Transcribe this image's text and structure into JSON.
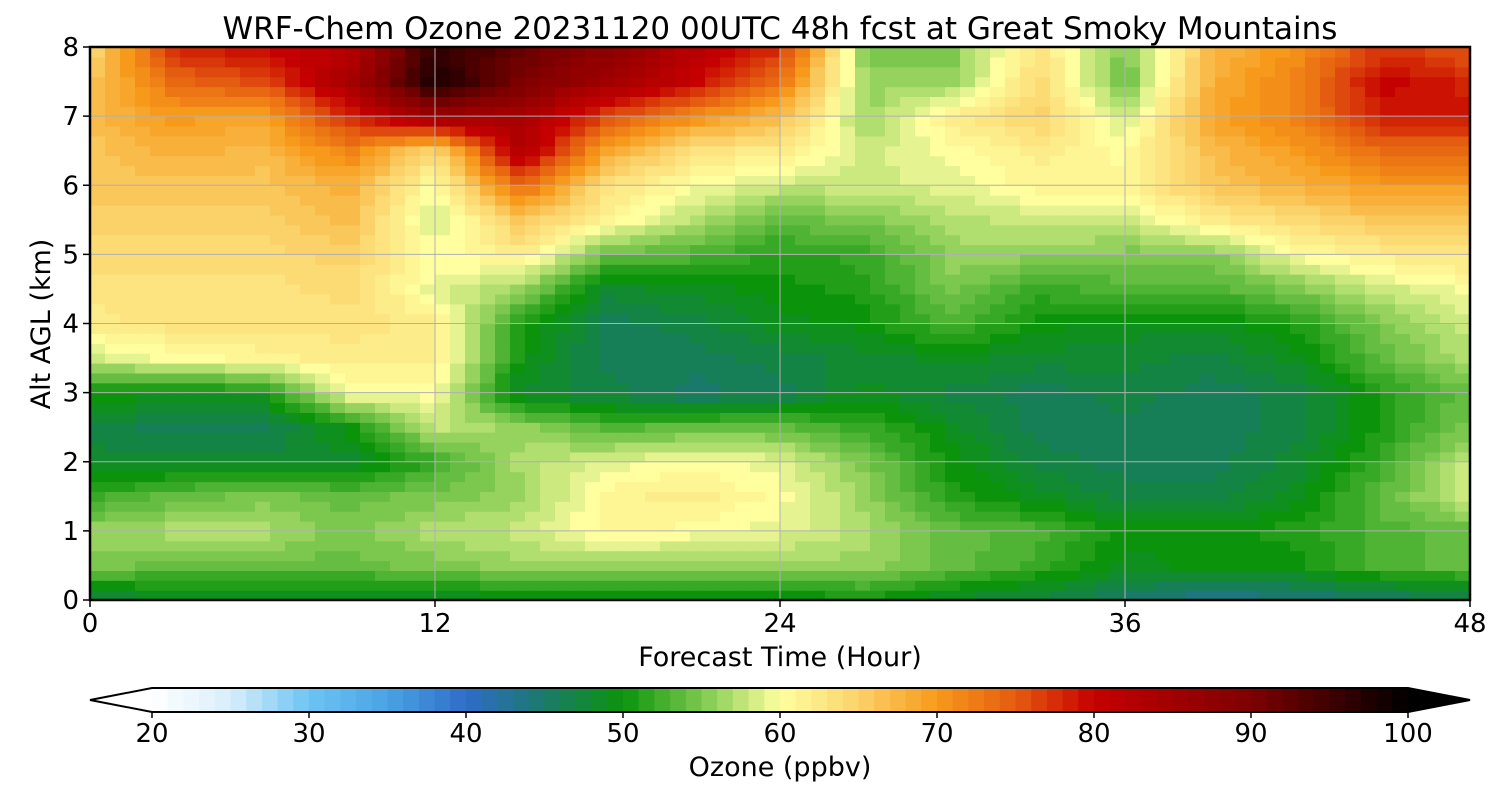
{
  "chart_data": {
    "type": "heatmap",
    "title": "WRF-Chem Ozone  20231120 00UTC 48h fcst at Great Smoky Mountains",
    "xlabel": "Forecast Time (Hour)",
    "ylabel": "Alt AGL (km)",
    "xlim": [
      0,
      48
    ],
    "ylim": [
      0,
      8
    ],
    "xticks": [
      0,
      12,
      24,
      36,
      48
    ],
    "yticks": [
      0,
      1,
      2,
      3,
      4,
      5,
      6,
      7,
      8
    ],
    "grid": true,
    "x": [
      0,
      3,
      6,
      9,
      12,
      15,
      18,
      21,
      24,
      27,
      30,
      33,
      36,
      39,
      42,
      45,
      48
    ],
    "y": [
      0,
      0.5,
      1,
      1.5,
      2,
      2.5,
      3,
      3.5,
      4,
      4.5,
      5,
      5.5,
      6,
      6.5,
      7,
      7.5,
      8
    ],
    "z": [
      [
        47,
        48,
        48,
        48,
        48,
        49,
        49,
        49,
        49,
        50,
        48,
        47,
        45,
        43,
        44,
        45,
        46
      ],
      [
        55,
        54,
        54,
        54,
        55,
        56,
        56,
        56,
        56,
        56,
        54,
        52,
        49,
        50,
        50,
        53,
        54
      ],
      [
        56,
        57,
        57,
        55,
        57,
        58,
        61,
        60,
        59,
        57,
        54,
        53,
        50,
        50,
        51,
        53,
        54
      ],
      [
        52,
        54,
        55,
        54,
        55,
        56,
        61,
        62,
        60,
        56,
        51,
        49,
        47,
        47,
        49,
        54,
        58
      ],
      [
        48,
        48,
        48,
        48,
        52,
        57,
        59,
        60,
        59,
        55,
        50,
        47,
        46,
        46,
        48,
        52,
        58
      ],
      [
        47,
        46,
        46,
        50,
        58,
        56,
        53,
        54,
        54,
        52,
        49,
        46,
        46,
        46,
        47,
        51,
        55
      ],
      [
        50,
        50,
        50,
        60,
        60,
        48,
        47,
        45,
        46,
        49,
        47,
        46,
        47,
        46,
        47,
        51,
        54
      ],
      [
        58,
        60,
        61,
        62,
        62,
        50,
        46,
        46,
        47,
        48,
        49,
        48,
        48,
        47,
        49,
        54,
        57
      ],
      [
        62,
        63,
        63,
        63,
        62,
        51,
        46,
        47,
        49,
        50,
        53,
        50,
        49,
        49,
        51,
        55,
        58
      ],
      [
        63,
        63,
        63,
        64,
        59,
        56,
        48,
        49,
        50,
        51,
        55,
        52,
        53,
        53,
        55,
        58,
        60
      ],
      [
        64,
        64,
        64,
        65,
        60,
        62,
        54,
        53,
        51,
        52,
        56,
        56,
        55,
        55,
        60,
        62,
        63
      ],
      [
        65,
        65,
        65,
        67,
        58,
        66,
        61,
        57,
        54,
        55,
        57,
        58,
        58,
        62,
        64,
        66,
        66
      ],
      [
        66,
        66,
        66,
        68,
        60,
        74,
        63,
        60,
        58,
        58,
        59,
        61,
        61,
        66,
        68,
        70,
        70
      ],
      [
        66,
        68,
        67,
        72,
        64,
        83,
        69,
        63,
        62,
        58,
        60,
        62,
        60,
        67,
        70,
        74,
        74
      ],
      [
        67,
        70,
        69,
        78,
        86,
        84,
        76,
        71,
        67,
        56,
        62,
        65,
        58,
        69,
        72,
        79,
        79
      ],
      [
        66,
        74,
        76,
        84,
        98,
        90,
        85,
        80,
        73,
        56,
        56,
        64,
        54,
        68,
        72,
        80,
        78
      ],
      [
        64,
        78,
        80,
        82,
        96,
        92,
        88,
        82,
        78,
        55,
        55,
        63,
        55,
        67,
        71,
        77,
        75
      ]
    ],
    "colorbar": {
      "label": "Ozone  (ppbv)",
      "ticks": [
        20,
        30,
        40,
        50,
        60,
        70,
        80,
        90,
        100
      ],
      "min": 20,
      "max": 100,
      "extend": "both"
    }
  }
}
